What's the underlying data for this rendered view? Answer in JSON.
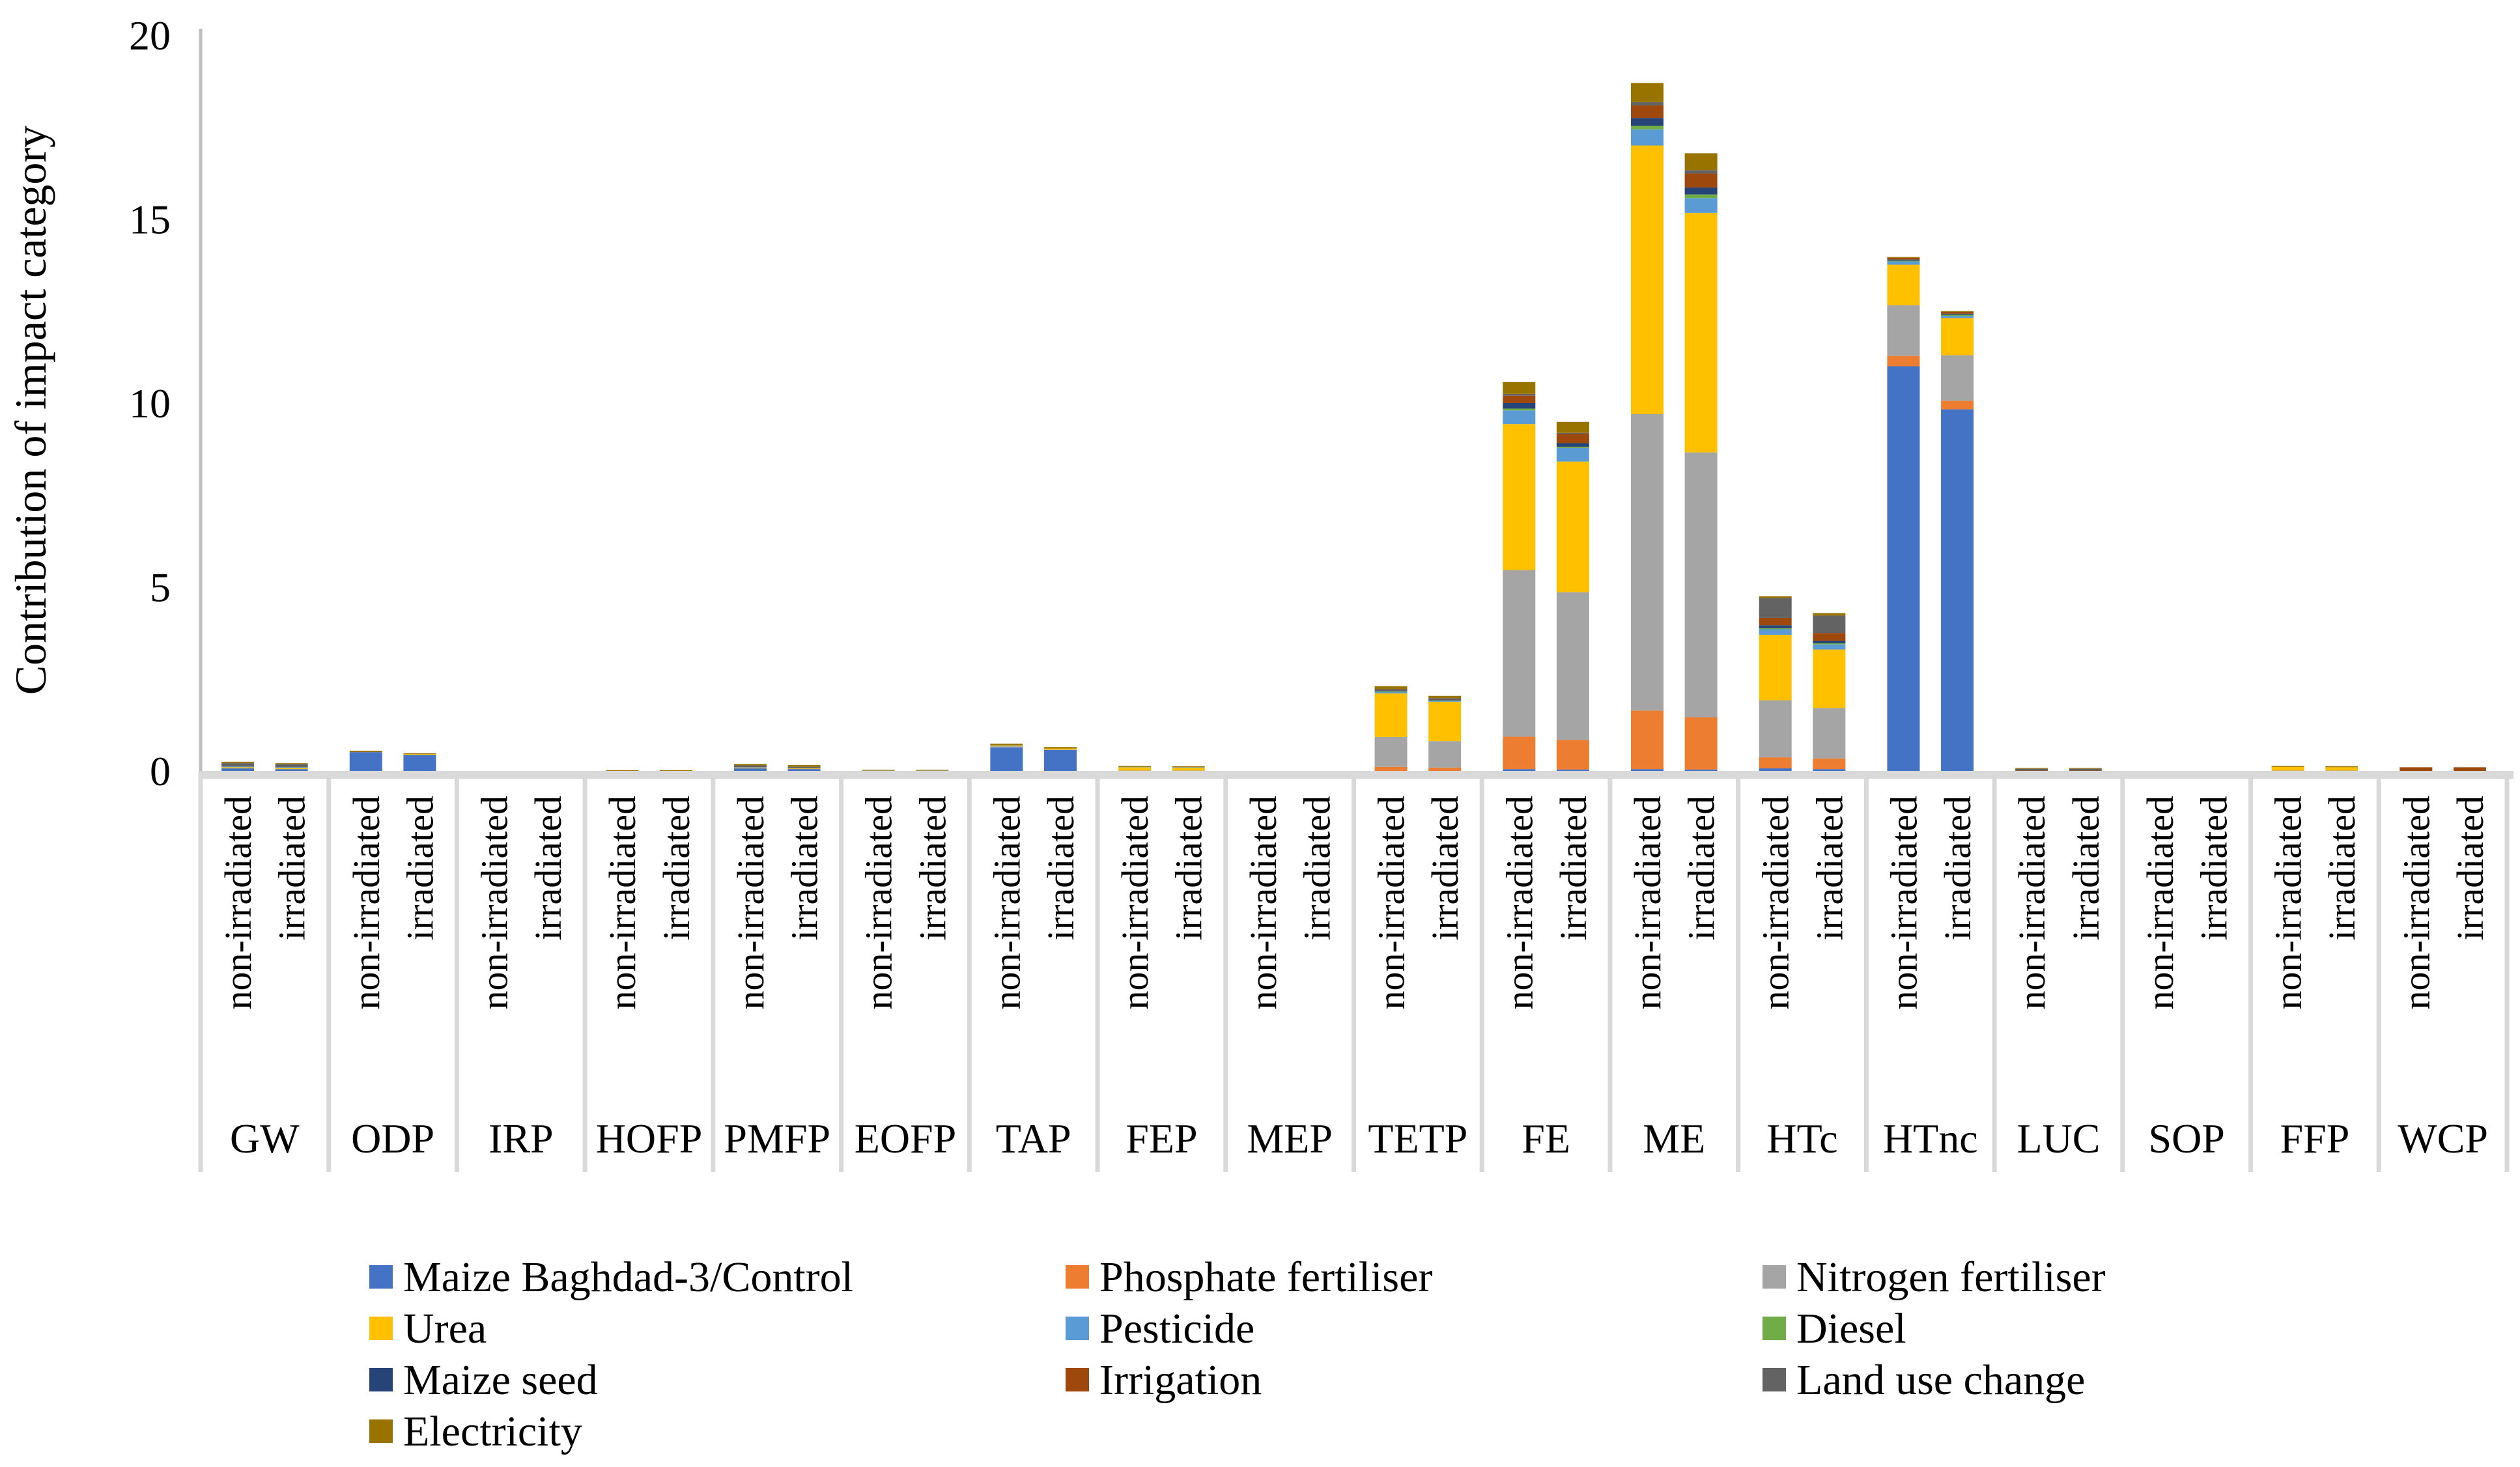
{
  "chart_data": {
    "type": "bar",
    "stacked": true,
    "title": "",
    "xlabel": "",
    "ylabel": "Contribution of impact category",
    "ylim": [
      0,
      20
    ],
    "yticks": [
      0,
      5,
      10,
      15,
      20
    ],
    "grid": false,
    "legend_position": "bottom",
    "groups": [
      "GW",
      "ODP",
      "IRP",
      "HOFP",
      "PMFP",
      "EOFP",
      "TAP",
      "FEP",
      "MEP",
      "TETP",
      "FE",
      "ME",
      "HTc",
      "HTnc",
      "LUC",
      "SOP",
      "FFP",
      "WCP"
    ],
    "subcategories": [
      "non-irradiated",
      "irradiated"
    ],
    "series": [
      {
        "name": "Maize Baghdad-3/Control",
        "color": "#4472C4",
        "values": [
          0.07,
          0.05,
          0.51,
          0.44,
          0,
          0,
          0,
          0,
          0.07,
          0.05,
          0,
          0,
          0.64,
          0.57,
          0,
          0,
          0,
          0,
          0,
          0,
          0.05,
          0.04,
          0.05,
          0.04,
          0.07,
          0.05,
          11.0,
          9.83,
          0,
          0,
          0,
          0,
          0,
          0,
          0,
          0
        ]
      },
      {
        "name": "Phosphate fertiliser",
        "color": "#ED7D31",
        "values": [
          0,
          0,
          0,
          0,
          0,
          0,
          0,
          0,
          0,
          0.01,
          0,
          0,
          0,
          0,
          0,
          0,
          0,
          0,
          0.11,
          0.09,
          0.88,
          0.8,
          1.59,
          1.42,
          0.3,
          0.29,
          0.28,
          0.23,
          0,
          0,
          0,
          0,
          0,
          0,
          0,
          0
        ]
      },
      {
        "name": "Nitrogen fertiliser",
        "color": "#A5A5A5",
        "values": [
          0,
          0,
          0,
          0,
          0,
          0,
          0,
          0,
          0,
          0,
          0.01,
          0.01,
          0.03,
          0.01,
          0.01,
          0.01,
          0,
          0,
          0.81,
          0.72,
          4.53,
          4.02,
          8.06,
          7.2,
          1.55,
          1.37,
          1.38,
          1.24,
          0,
          0,
          0,
          0,
          0.01,
          0.01,
          0,
          0
        ]
      },
      {
        "name": "Urea",
        "color": "#FFC000",
        "values": [
          0.03,
          0.03,
          0,
          0.02,
          0,
          0,
          0,
          0,
          0.02,
          0.01,
          0,
          0,
          0.02,
          0.03,
          0.09,
          0.08,
          0,
          0,
          1.19,
          1.07,
          3.97,
          3.55,
          7.3,
          6.51,
          1.78,
          1.59,
          1.1,
          1.01,
          0,
          0,
          0,
          0,
          0.1,
          0.09,
          0,
          0
        ]
      },
      {
        "name": "Pesticide",
        "color": "#5B9BD5",
        "values": [
          0.02,
          0.02,
          0,
          0,
          0,
          0,
          0,
          0,
          0.01,
          0.01,
          0,
          0,
          0.01,
          0,
          0.01,
          0.01,
          0,
          0,
          0.04,
          0.03,
          0.37,
          0.37,
          0.44,
          0.4,
          0.15,
          0.14,
          0.09,
          0.06,
          0,
          0,
          0,
          0,
          0,
          0,
          0,
          0
        ]
      },
      {
        "name": "Diesel",
        "color": "#70AD47",
        "values": [
          0,
          0,
          0,
          0,
          0,
          0,
          0,
          0,
          0,
          0,
          0,
          0,
          0,
          0,
          0,
          0,
          0,
          0,
          0.02,
          0.01,
          0.05,
          0.03,
          0.1,
          0.1,
          0.03,
          0.03,
          0.02,
          0.03,
          0,
          0,
          0,
          0,
          0,
          0,
          0,
          0
        ]
      },
      {
        "name": "Maize seed",
        "color": "#264478",
        "values": [
          0,
          0,
          0,
          0,
          0,
          0,
          0,
          0,
          0,
          0,
          0,
          0,
          0,
          0,
          0,
          0,
          0,
          0,
          0.02,
          0.02,
          0.15,
          0.1,
          0.21,
          0.19,
          0.08,
          0.07,
          0.03,
          0.03,
          0,
          0,
          0,
          0,
          0,
          0,
          0,
          0
        ]
      },
      {
        "name": "Irrigation",
        "color": "#9E480E",
        "values": [
          0,
          0,
          0,
          0,
          0,
          0,
          0,
          0,
          0,
          0,
          0,
          0,
          0,
          0,
          0,
          0,
          0,
          0,
          0.02,
          0.02,
          0.2,
          0.25,
          0.34,
          0.38,
          0.2,
          0.21,
          0.05,
          0.05,
          0.01,
          0.01,
          0,
          0,
          0,
          0,
          0.1,
          0.1
        ]
      },
      {
        "name": "Land use change",
        "color": "#636363",
        "values": [
          0.09,
          0.09,
          0,
          0,
          0,
          0,
          0,
          0,
          0.05,
          0.03,
          0,
          0,
          0,
          0,
          0,
          0,
          0,
          0,
          0.02,
          0.02,
          0.05,
          0.03,
          0.09,
          0.09,
          0.54,
          0.47,
          0,
          0,
          0.05,
          0.05,
          0,
          0,
          0,
          0,
          0,
          0
        ]
      },
      {
        "name": "Electricity",
        "color": "#997300",
        "values": [
          0.04,
          0.02,
          0.04,
          0.02,
          0,
          0,
          0.02,
          0.02,
          0.04,
          0.05,
          0.02,
          0.02,
          0.04,
          0.04,
          0.03,
          0.03,
          0,
          0,
          0.07,
          0.06,
          0.32,
          0.3,
          0.52,
          0.46,
          0.05,
          0.07,
          0.02,
          0.02,
          0.02,
          0.02,
          0,
          0,
          0.03,
          0.03,
          0,
          0
        ]
      }
    ]
  }
}
